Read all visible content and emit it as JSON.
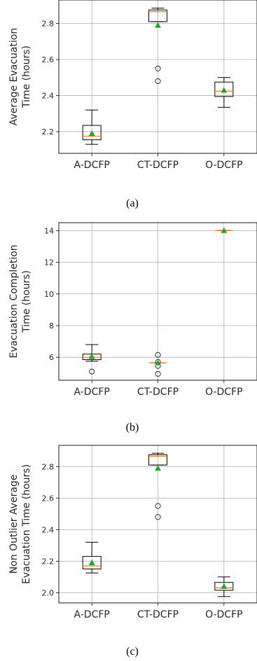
{
  "colors": {
    "median": "#ff7f0e",
    "mean": "#2ca02c",
    "box": "#000000",
    "grid": "#b0b0b0"
  },
  "chart_data": [
    {
      "type": "box",
      "caption": "(a)",
      "ylabel": [
        "Average Evacuation",
        "Time (hours)"
      ],
      "categories": [
        "A-DCFP",
        "CT-DCFP",
        "O-DCFP"
      ],
      "ylim": [
        2.08,
        2.93
      ],
      "yticks": [
        2.2,
        2.4,
        2.6,
        2.8
      ],
      "ytick_labels": [
        "2.2",
        "2.4",
        "2.6",
        "2.8"
      ],
      "grid": true,
      "boxes": [
        {
          "whislo": 2.13,
          "q1": 2.155,
          "median": 2.175,
          "q3": 2.235,
          "whishi": 2.32,
          "mean": 2.19,
          "fliers": []
        },
        {
          "whislo": 2.81,
          "q1": 2.81,
          "median": 2.865,
          "q3": 2.875,
          "whishi": 2.885,
          "mean": 2.79,
          "fliers": [
            2.55,
            2.48
          ]
        },
        {
          "whislo": 2.335,
          "q1": 2.395,
          "median": 2.425,
          "q3": 2.475,
          "whishi": 2.5,
          "mean": 2.43,
          "fliers": []
        }
      ]
    },
    {
      "type": "box",
      "caption": "(b)",
      "ylabel": [
        "Evacuation Completion",
        "Time (hours)"
      ],
      "categories": [
        "A-DCFP",
        "CT-DCFP",
        "O-DCFP"
      ],
      "ylim": [
        4.55,
        14.5
      ],
      "yticks": [
        6,
        8,
        10,
        12,
        14
      ],
      "ytick_labels": [
        "6",
        "8",
        "10",
        "12",
        "14"
      ],
      "grid": true,
      "boxes": [
        {
          "whislo": 5.75,
          "q1": 5.85,
          "median": 6.0,
          "q3": 6.2,
          "whishi": 6.8,
          "mean": 6.05,
          "fliers": [
            5.1
          ]
        },
        {
          "whislo": 5.65,
          "q1": 5.65,
          "median": 5.65,
          "q3": 5.65,
          "whishi": 5.65,
          "mean": 5.65,
          "fliers": [
            6.15,
            5.7,
            5.45,
            4.95
          ]
        },
        {
          "whislo": 14.0,
          "q1": 14.0,
          "median": 14.0,
          "q3": 14.0,
          "whishi": 14.0,
          "mean": 14.0,
          "fliers": []
        }
      ]
    },
    {
      "type": "box",
      "caption": "(c)",
      "ylabel": [
        "Non Outlier Average",
        "Evacuation Time (hours)"
      ],
      "categories": [
        "A-DCFP",
        "CT-DCFP",
        "O-DCFP"
      ],
      "ylim": [
        1.935,
        2.935
      ],
      "yticks": [
        2.0,
        2.2,
        2.4,
        2.6,
        2.8
      ],
      "ytick_labels": [
        "2.0",
        "2.2",
        "2.4",
        "2.6",
        "2.8"
      ],
      "grid": true,
      "boxes": [
        {
          "whislo": 2.125,
          "q1": 2.15,
          "median": 2.17,
          "q3": 2.23,
          "whishi": 2.32,
          "mean": 2.19,
          "fliers": []
        },
        {
          "whislo": 2.81,
          "q1": 2.81,
          "median": 2.865,
          "q3": 2.875,
          "whishi": 2.885,
          "mean": 2.79,
          "fliers": [
            2.55,
            2.48
          ]
        },
        {
          "whislo": 1.975,
          "q1": 2.015,
          "median": 2.03,
          "q3": 2.065,
          "whishi": 2.1,
          "mean": 2.04,
          "fliers": []
        }
      ]
    }
  ]
}
